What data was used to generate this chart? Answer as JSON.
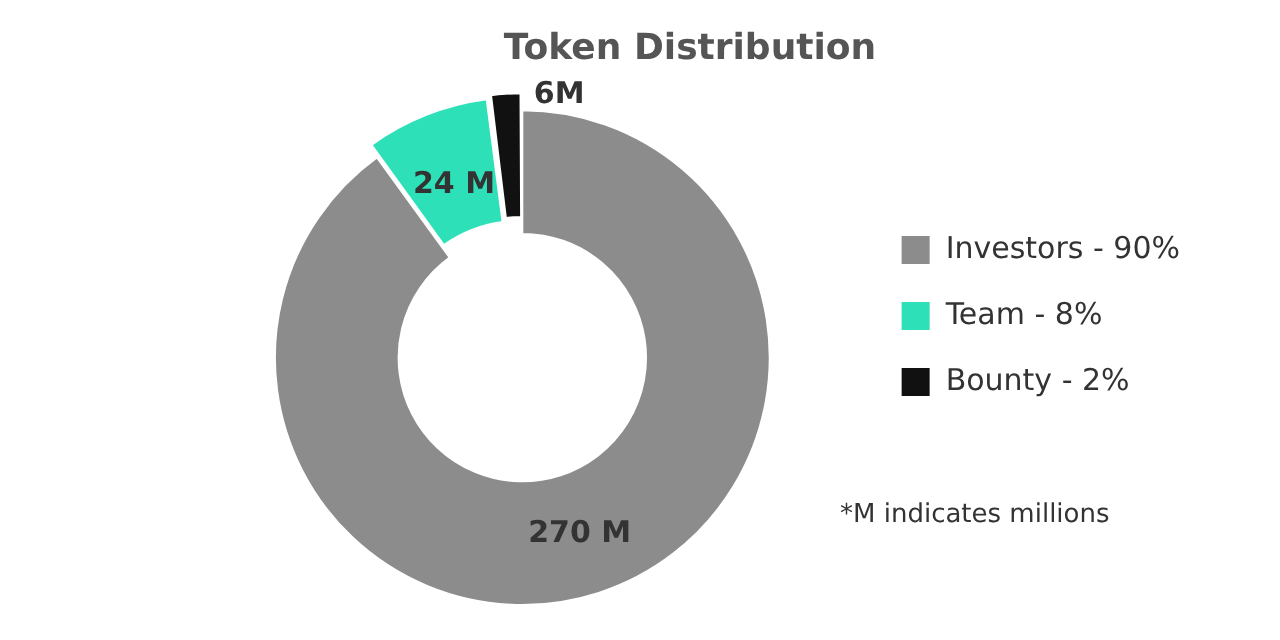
{
  "chart_data": {
    "type": "donut",
    "title": "Token Distribution",
    "categories": [
      "Investors - 90%",
      "Team - 8%",
      "Bounty - 2%"
    ],
    "values": [
      270,
      24,
      6
    ],
    "value_labels": [
      "270 M",
      "24 M",
      "6M"
    ],
    "colors": [
      "#8c8c8c",
      "#2ee0b8",
      "#111111"
    ],
    "legend": "right",
    "annotations": [
      "*M indicates millions"
    ]
  }
}
